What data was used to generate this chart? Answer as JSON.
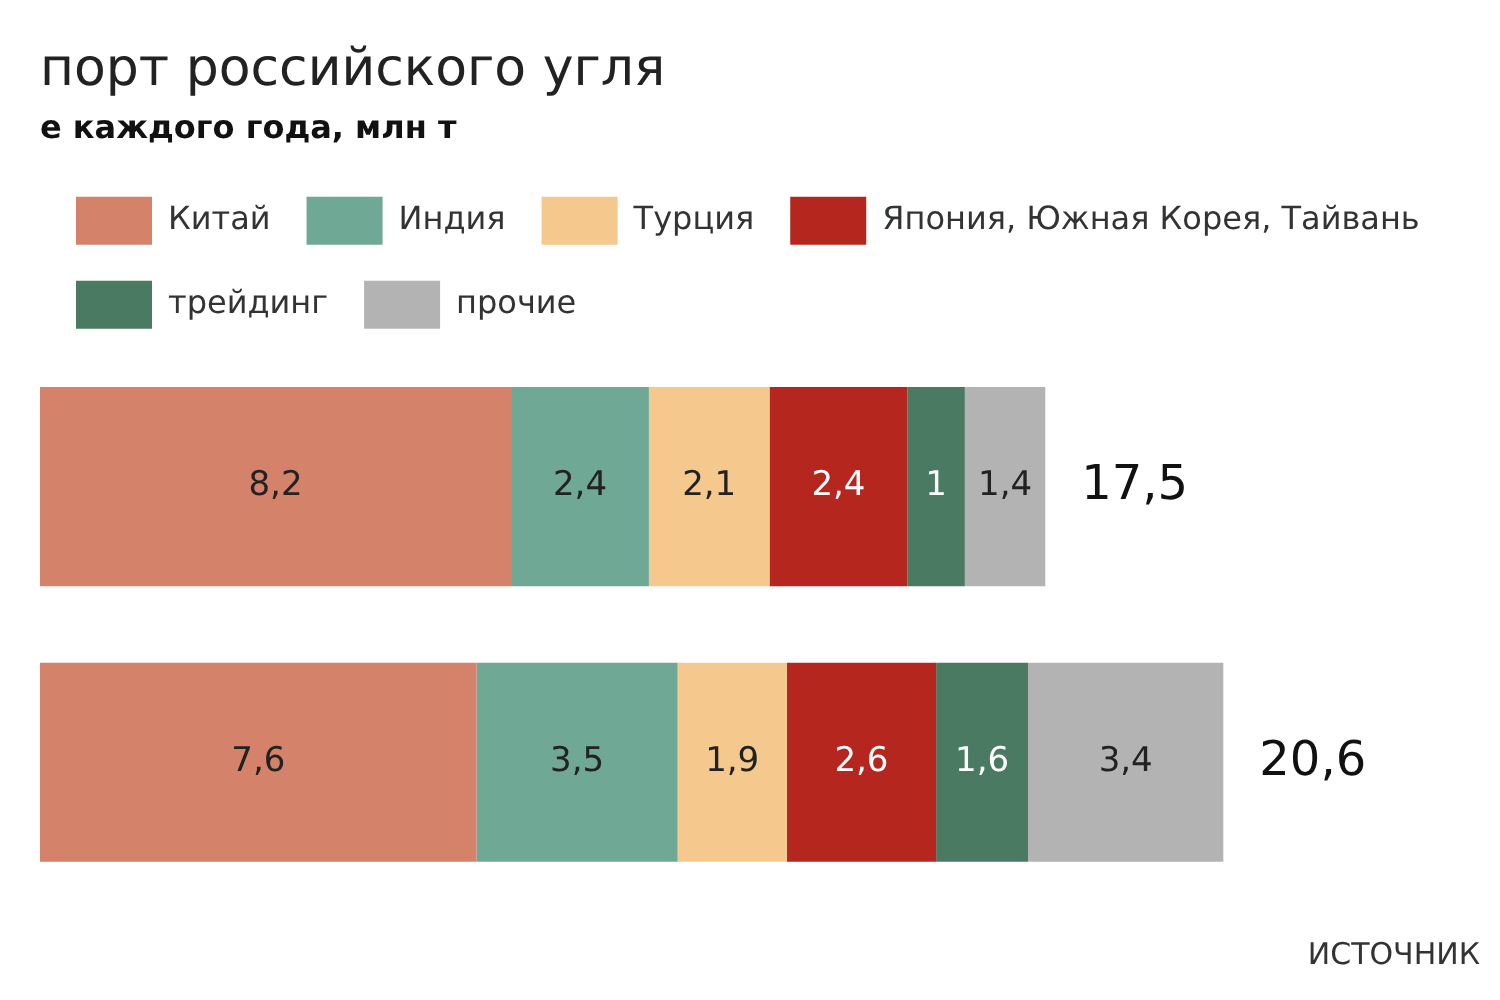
{
  "chart_data": {
    "type": "bar",
    "orientation": "horizontal",
    "stacked": true,
    "title": "порт российского угля",
    "subtitle": "е каждого года, млн т",
    "categories": [
      null,
      null
    ],
    "series": [
      {
        "name": "Китай",
        "color": "#d4826a",
        "values": [
          8.2,
          7.6
        ],
        "value_labels": [
          "8,2",
          "7,6"
        ]
      },
      {
        "name": "Индия",
        "color": "#6fa895",
        "values": [
          2.4,
          3.5
        ],
        "value_labels": [
          "2,4",
          "3,5"
        ]
      },
      {
        "name": "Турция",
        "color": "#f5c98e",
        "values": [
          2.1,
          1.9
        ],
        "value_labels": [
          "2,1",
          "1,9"
        ]
      },
      {
        "name": "Япония, Южная Корея, Тайвань",
        "color": "#b5261e",
        "values": [
          2.4,
          2.6
        ],
        "value_labels": [
          "2,4",
          "2,6"
        ]
      },
      {
        "name": "трейдинг",
        "color": "#4a7a62",
        "values": [
          1,
          1.6
        ],
        "value_labels": [
          "1",
          "1,6"
        ]
      },
      {
        "name": "прочие",
        "color": "#b3b3b3",
        "values": [
          1.4,
          3.4
        ],
        "value_labels": [
          "1,4",
          "3,4"
        ]
      }
    ],
    "totals": [
      "17,5",
      "20,6"
    ],
    "legend": "top",
    "annotations": [
      "ИСТОЧНИК"
    ]
  }
}
